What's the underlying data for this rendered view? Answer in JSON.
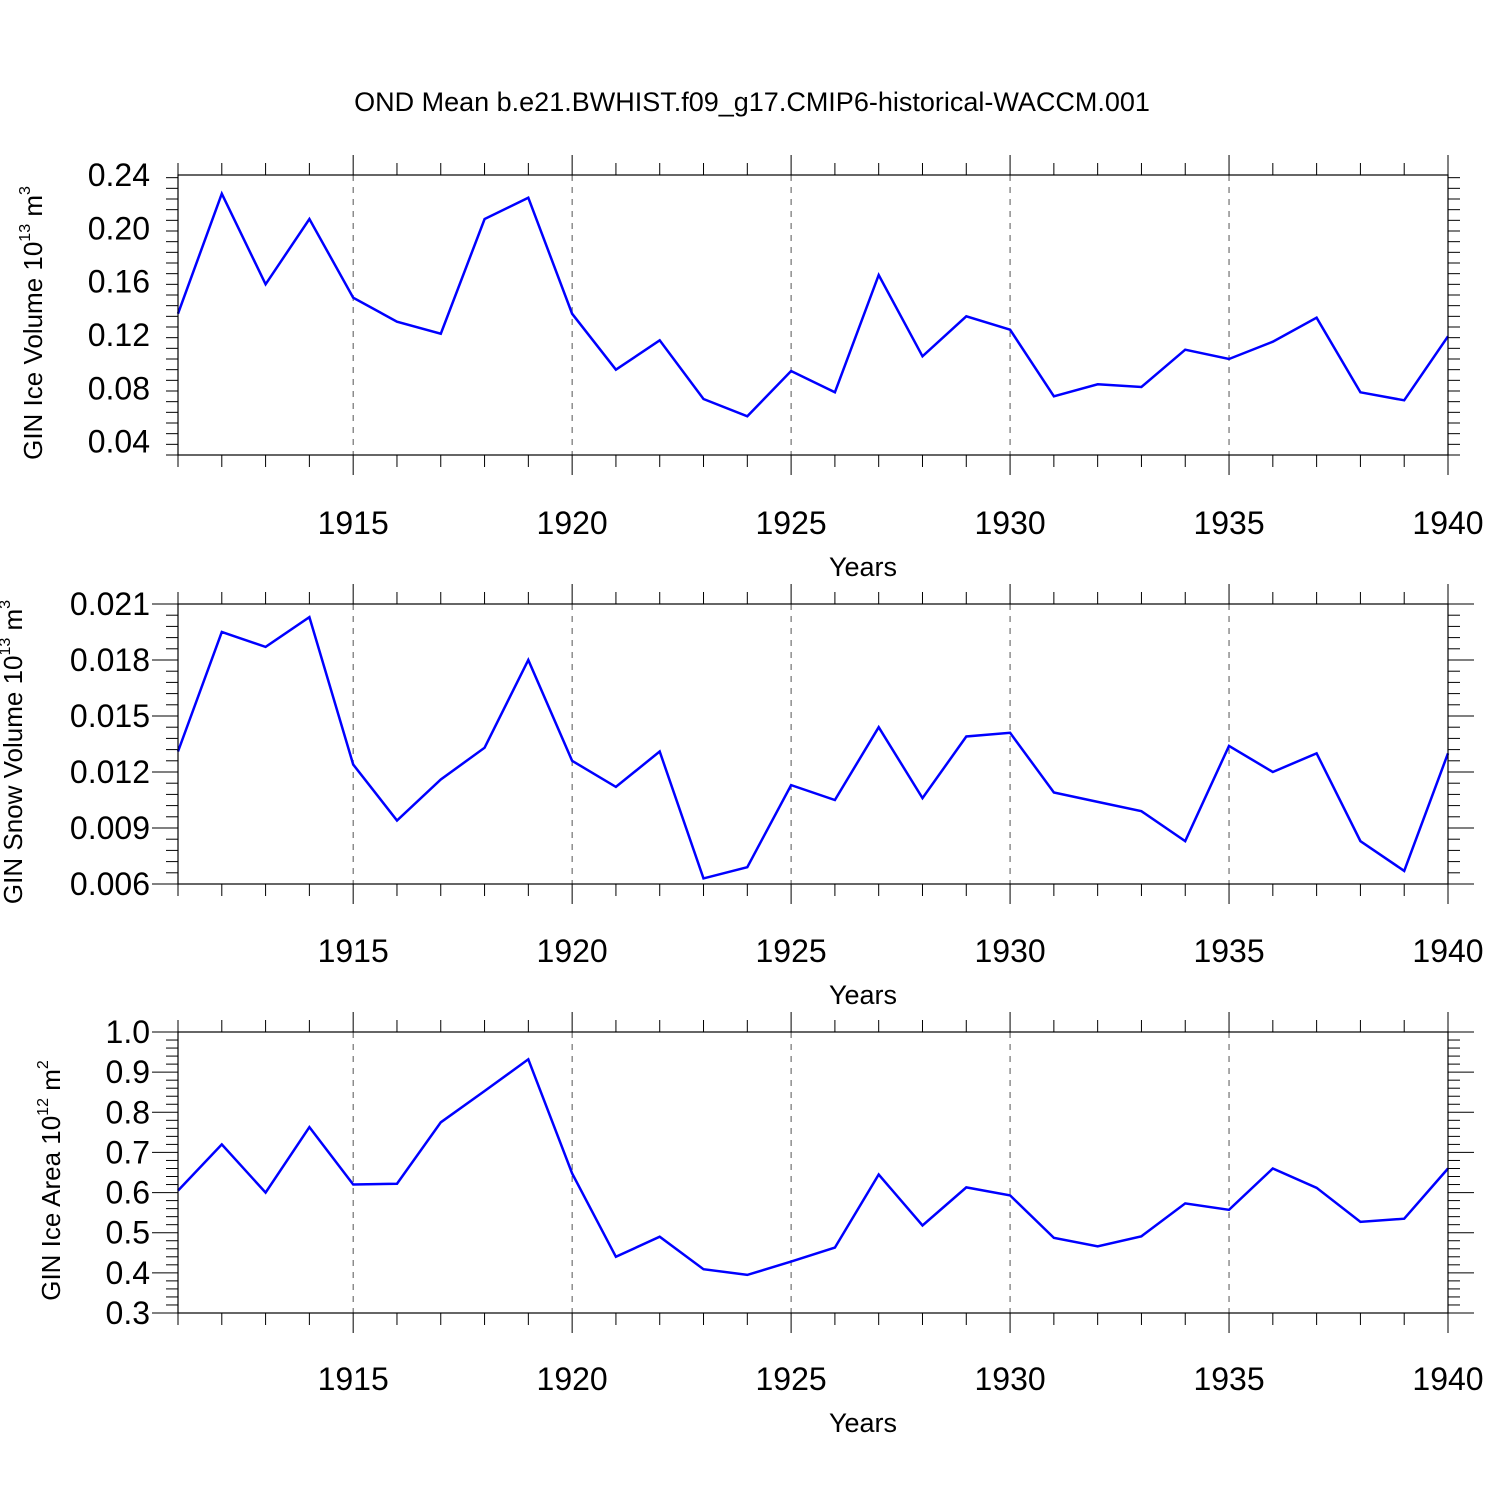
{
  "title": "OND Mean b.e21.BWHIST.f09_g17.CMIP6-historical-WACCM.001",
  "chart_data": [
    {
      "type": "line",
      "id": "ice-volume",
      "ylabel": {
        "main": "GIN Ice Volume 10",
        "sup1": "13",
        "mid": " m",
        "sup2": "3"
      },
      "xlabel": "Years",
      "xlim": [
        1911,
        1940
      ],
      "ylim": [
        0.03,
        0.24
      ],
      "x_ticks": [
        "1915",
        "1920",
        "1925",
        "1930",
        "1935",
        "1940"
      ],
      "y_ticks": [
        "0.04",
        "0.08",
        "0.12",
        "0.16",
        "0.20",
        "0.24"
      ],
      "grid": "vertical dashed at labeled x ticks",
      "color": "#0000ff",
      "series": [
        {
          "x": [
            1911,
            1912,
            1913,
            1914,
            1915,
            1916,
            1917,
            1918,
            1919,
            1920,
            1921,
            1922,
            1923,
            1924,
            1925,
            1926,
            1927,
            1928,
            1929,
            1930,
            1931,
            1932,
            1933,
            1934,
            1935,
            1936,
            1937,
            1938,
            1939,
            1940
          ],
          "values": [
            0.136,
            0.226,
            0.158,
            0.207,
            0.148,
            0.13,
            0.121,
            0.207,
            0.223,
            0.136,
            0.094,
            0.116,
            0.072,
            0.059,
            0.093,
            0.077,
            0.165,
            0.104,
            0.134,
            0.124,
            0.074,
            0.083,
            0.081,
            0.109,
            0.102,
            0.115,
            0.133,
            0.077,
            0.071,
            0.119
          ]
        }
      ]
    },
    {
      "type": "line",
      "id": "snow-volume",
      "ylabel": {
        "main": "GIN Snow Volume 10",
        "sup1": "13",
        "mid": " m",
        "sup2": "3"
      },
      "xlabel": "Years",
      "xlim": [
        1911,
        1940
      ],
      "ylim": [
        0.006,
        0.021
      ],
      "x_ticks": [
        "1915",
        "1920",
        "1925",
        "1930",
        "1935",
        "1940"
      ],
      "y_ticks": [
        "0.006",
        "0.009",
        "0.012",
        "0.015",
        "0.018",
        "0.021"
      ],
      "grid": "vertical dashed at labeled x ticks",
      "color": "#0000ff",
      "series": [
        {
          "x": [
            1911,
            1912,
            1913,
            1914,
            1915,
            1916,
            1917,
            1918,
            1919,
            1920,
            1921,
            1922,
            1923,
            1924,
            1925,
            1926,
            1927,
            1928,
            1929,
            1930,
            1931,
            1932,
            1933,
            1934,
            1935,
            1936,
            1937,
            1938,
            1939,
            1940
          ],
          "values": [
            0.0131,
            0.0195,
            0.0187,
            0.0203,
            0.0124,
            0.0094,
            0.0116,
            0.0133,
            0.018,
            0.0126,
            0.0112,
            0.0131,
            0.0063,
            0.0069,
            0.0113,
            0.0105,
            0.0144,
            0.0106,
            0.0139,
            0.0141,
            0.0109,
            0.0104,
            0.0099,
            0.0083,
            0.0134,
            0.012,
            0.013,
            0.0083,
            0.0067,
            0.013
          ]
        }
      ]
    },
    {
      "type": "line",
      "id": "ice-area",
      "ylabel": {
        "main": "GIN Ice Area 10",
        "sup1": "12",
        "mid": " m",
        "sup2": "2"
      },
      "xlabel": "Years",
      "xlim": [
        1911,
        1940
      ],
      "ylim": [
        0.3,
        1.0
      ],
      "x_ticks": [
        "1915",
        "1920",
        "1925",
        "1930",
        "1935",
        "1940"
      ],
      "y_ticks": [
        "0.3",
        "0.4",
        "0.5",
        "0.6",
        "0.7",
        "0.8",
        "0.9",
        "1.0"
      ],
      "grid": "vertical dashed at labeled x ticks",
      "color": "#0000ff",
      "series": [
        {
          "x": [
            1911,
            1912,
            1913,
            1914,
            1915,
            1916,
            1917,
            1918,
            1919,
            1920,
            1921,
            1922,
            1923,
            1924,
            1925,
            1926,
            1927,
            1928,
            1929,
            1930,
            1931,
            1932,
            1933,
            1934,
            1935,
            1936,
            1937,
            1938,
            1939,
            1940
          ],
          "values": [
            0.605,
            0.72,
            0.6,
            0.763,
            0.62,
            0.622,
            0.775,
            0.853,
            0.932,
            0.648,
            0.44,
            0.49,
            0.409,
            0.395,
            0.428,
            0.463,
            0.645,
            0.518,
            0.613,
            0.593,
            0.487,
            0.466,
            0.491,
            0.573,
            0.557,
            0.66,
            0.612,
            0.527,
            0.535,
            0.66
          ]
        }
      ]
    }
  ]
}
